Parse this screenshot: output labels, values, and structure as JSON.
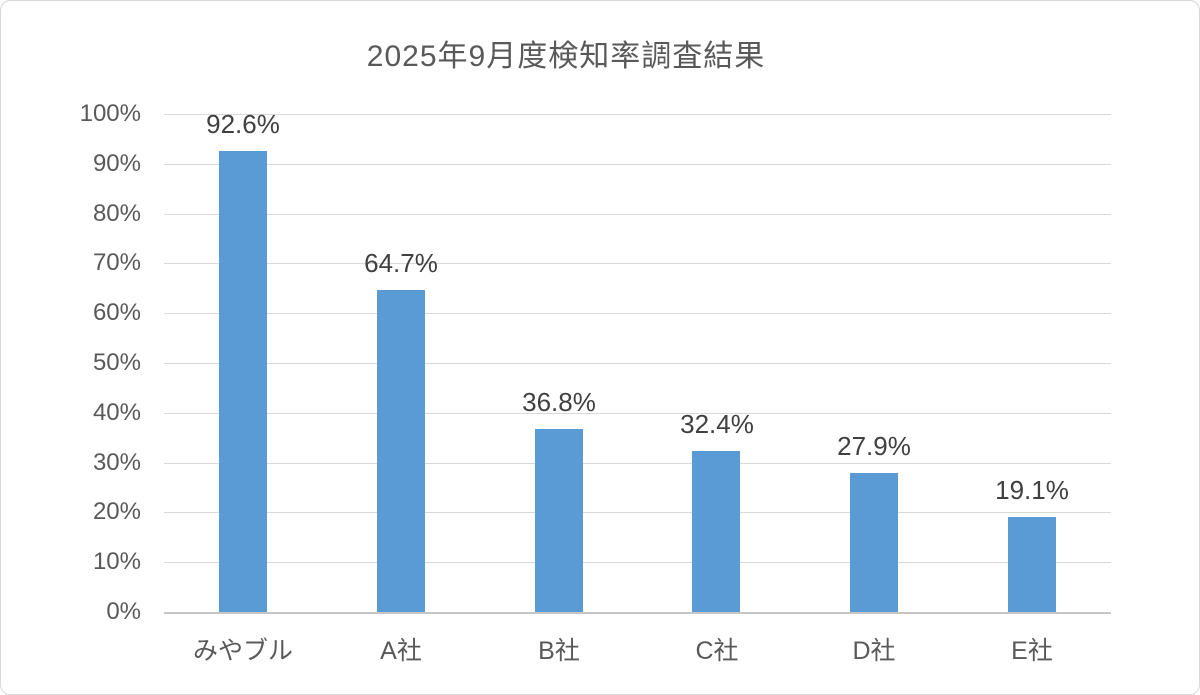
{
  "frame": {
    "background": "#ffffff",
    "border_color": "#d9d9d9"
  },
  "chart_data": {
    "type": "bar",
    "title": "2025年9月度検知率調査結果",
    "categories": [
      "みやブル",
      "A社",
      "B社",
      "C社",
      "D社",
      "E社"
    ],
    "values": [
      92.6,
      64.7,
      36.8,
      32.4,
      27.9,
      19.1
    ],
    "data_labels": [
      "92.6%",
      "64.7%",
      "36.8%",
      "32.4%",
      "27.9%",
      "19.1%"
    ],
    "y_ticks": [
      "100%",
      "90%",
      "80%",
      "70%",
      "60%",
      "50%",
      "40%",
      "30%",
      "20%",
      "10%",
      "0%"
    ],
    "ylim": [
      0,
      100
    ],
    "xlabel": "",
    "ylabel": "",
    "grid": true,
    "legend": "none",
    "colors": {
      "bar": "#5b9bd5",
      "gridline": "#d9d9d9",
      "axis_line": "#c6c6c6",
      "title_text": "#595959",
      "tick_label_text": "#595959",
      "data_label_text": "#404040"
    }
  }
}
